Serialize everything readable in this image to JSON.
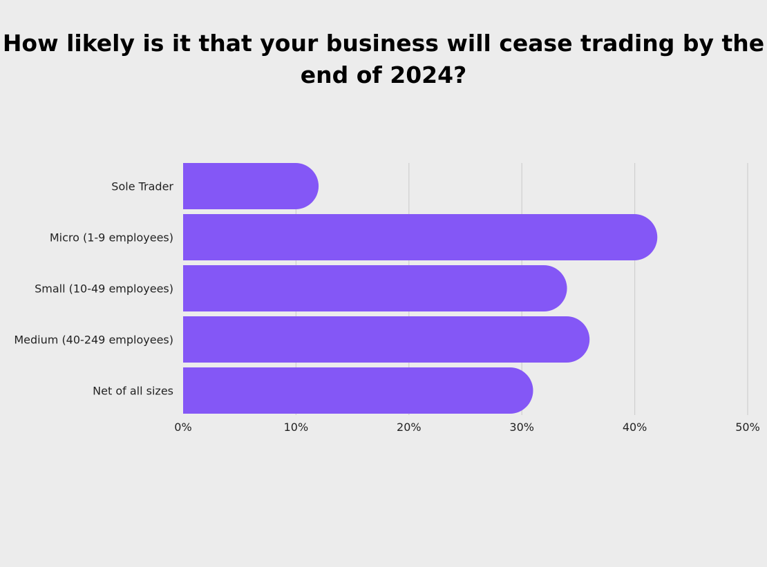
{
  "chart_data": {
    "type": "bar",
    "orientation": "horizontal",
    "title_lines": [
      "How likely is it that your business will cease trading by the",
      "end of 2024?"
    ],
    "categories": [
      "Sole Trader",
      "Micro (1-9 employees)",
      "Small (10-49 employees)",
      "Medium (40-249 employees)",
      "Net of all sizes"
    ],
    "values": [
      12,
      42,
      34,
      36,
      31
    ],
    "xlim": [
      0,
      50
    ],
    "xticks": [
      0,
      10,
      20,
      30,
      40,
      50
    ],
    "tick_labels": [
      "0%",
      "10%",
      "20%",
      "30%",
      "40%",
      "50%"
    ],
    "grid": "vertical",
    "legend": "none",
    "colors": {
      "bar": "#8457f6",
      "grid": "#cfcfcf",
      "background": "#ececec",
      "text": "#222222"
    }
  }
}
